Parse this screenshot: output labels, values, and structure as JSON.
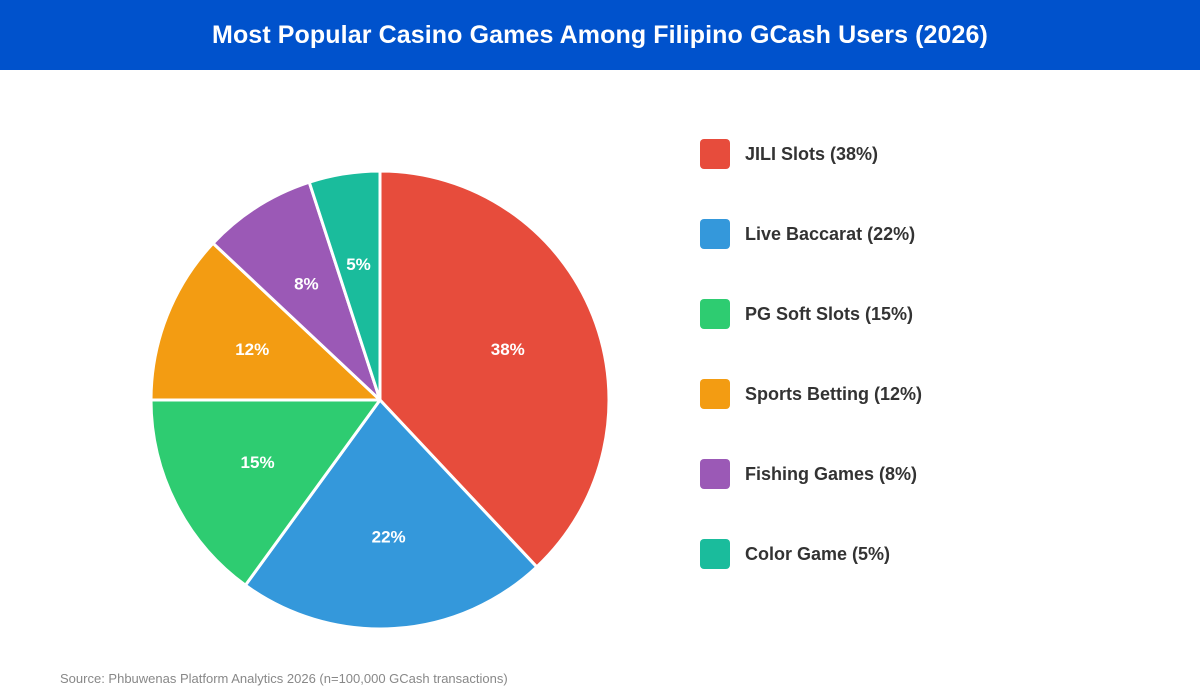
{
  "chart_data": {
    "type": "pie",
    "title": "Most Popular Casino Games Among Filipino GCash Users (2026)",
    "slices": [
      {
        "value": 38,
        "data_label": "38%",
        "legend_label": "JILI Slots (38%)",
        "color": "#e74c3c"
      },
      {
        "value": 22,
        "data_label": "22%",
        "legend_label": "Live Baccarat (22%)",
        "color": "#3498db"
      },
      {
        "value": 15,
        "data_label": "15%",
        "legend_label": "PG Soft Slots (15%)",
        "color": "#2ecc71"
      },
      {
        "value": 12,
        "data_label": "12%",
        "legend_label": "Sports Betting (12%)",
        "color": "#f39c12"
      },
      {
        "value": 8,
        "data_label": "8%",
        "legend_label": "Fishing Games (8%)",
        "color": "#9b59b6"
      },
      {
        "value": 5,
        "data_label": "5%",
        "legend_label": "Color Game (5%)",
        "color": "#1abc9c"
      }
    ],
    "legend_position": "right",
    "start_angle": "top",
    "direction": "clockwise"
  },
  "source": "Source: Phbuwenas Platform Analytics 2026 (n=100,000 GCash transactions)",
  "colors": {
    "header_background": "#0052cc",
    "header_text": "#ffffff",
    "legend_text": "#333333",
    "source_text": "#888888"
  }
}
